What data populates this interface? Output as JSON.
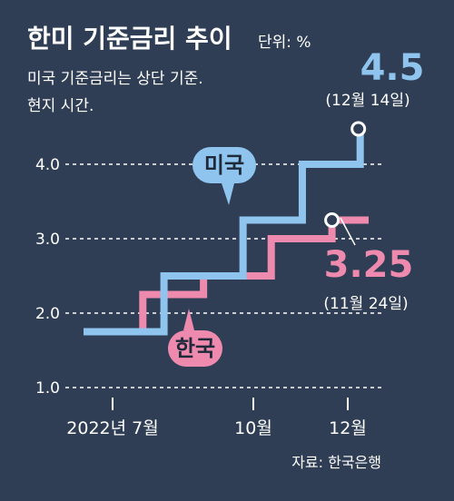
{
  "chart_data": {
    "type": "line",
    "step": true,
    "title": "한미 기준금리 추이",
    "unit_label": "단위: %",
    "notes": [
      "미국 기준금리는 상단 기준.",
      "현지 시간."
    ],
    "x_ticks": [
      {
        "label": "2022년 7월",
        "date": "2022-07"
      },
      {
        "label": "10월",
        "date": "2022-10"
      },
      {
        "label": "12월",
        "date": "2022-12"
      }
    ],
    "y_ticks": [
      "1.0",
      "2.0",
      "3.0",
      "4.0"
    ],
    "ylim": [
      1.0,
      4.5
    ],
    "grid": true,
    "series": [
      {
        "name": "미국",
        "color": "#8ec4ee",
        "points": [
          {
            "x": "2022-06-01",
            "y": 1.75
          },
          {
            "x": "2022-06-16",
            "y": 1.75
          },
          {
            "x": "2022-06-16",
            "y": 1.75
          },
          {
            "x": "2022-07-28",
            "y": 2.5
          },
          {
            "x": "2022-09-22",
            "y": 3.25
          },
          {
            "x": "2022-11-03",
            "y": 4.0
          },
          {
            "x": "2022-12-14",
            "y": 4.5
          }
        ],
        "end_label": "4.5",
        "end_date": "(12월 14일)"
      },
      {
        "name": "한국",
        "color": "#ee8aad",
        "points": [
          {
            "x": "2022-06-01",
            "y": 1.75
          },
          {
            "x": "2022-07-13",
            "y": 2.25
          },
          {
            "x": "2022-08-25",
            "y": 2.5
          },
          {
            "x": "2022-10-12",
            "y": 3.0
          },
          {
            "x": "2022-11-24",
            "y": 3.25
          },
          {
            "x": "2022-12-20",
            "y": 3.25
          }
        ],
        "end_label": "3.25",
        "end_date": "(11월 24일)"
      }
    ],
    "source": "자료: 한국은행"
  }
}
